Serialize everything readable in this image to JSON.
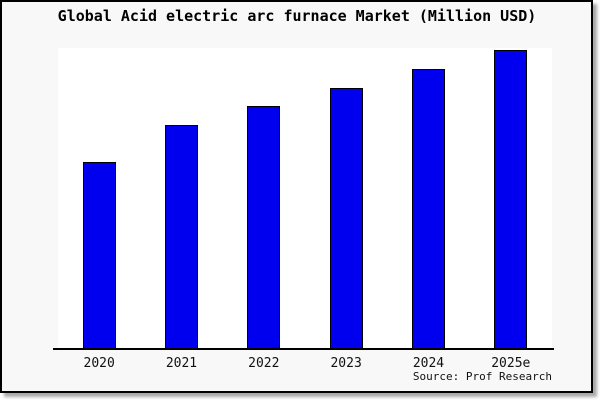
{
  "title": "Global Acid electric arc furnace Market (Million USD)",
  "source": "Source: Prof Research",
  "colors": {
    "bar": "#0000ee",
    "bar_border": "#000000",
    "background": "#f8f8f8",
    "plot_background": "#ffffff",
    "axis": "#000000",
    "frame_border": "#000000",
    "frame_shadow": "#a9a9a9"
  },
  "chart_data": {
    "type": "bar",
    "title": "Global Acid electric arc furnace Market (Million USD)",
    "categories": [
      "2020",
      "2021",
      "2022",
      "2023",
      "2024",
      "2025e"
    ],
    "values": [
      1870,
      2240,
      2430,
      2610,
      2800,
      2990
    ],
    "unit": "Million USD",
    "values_note": "estimated from bar heights; y-axis has no tick labels or gridlines",
    "xlabel": "",
    "ylabel": "",
    "ylim": [
      0,
      3010
    ],
    "grid": false,
    "legend": false,
    "source": "Source: Prof Research"
  }
}
